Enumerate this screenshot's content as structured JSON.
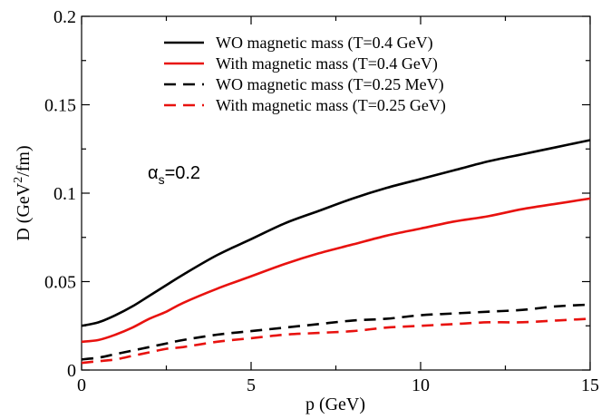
{
  "chart_data": {
    "type": "line",
    "xlabel": "p (GeV)",
    "ylabel": {
      "pre": "D (GeV",
      "sup": "2",
      "post": "/fm)"
    },
    "xlim": [
      0,
      15
    ],
    "ylim": [
      0,
      0.2
    ],
    "xticks": [
      "0",
      "5",
      "10",
      "15"
    ],
    "xtick_values": [
      0,
      5,
      10,
      15
    ],
    "yticks": [
      "0",
      "0.05",
      "0.1",
      "0.15",
      "0.2"
    ],
    "ytick_values": [
      0,
      0.05,
      0.1,
      0.15,
      0.2
    ],
    "annotation": {
      "greek": "α",
      "sub": "s",
      "rest": "=0.2"
    },
    "grid": false,
    "legend_position": "top-center",
    "x": [
      0,
      0.5,
      1,
      1.5,
      2,
      2.5,
      3,
      4,
      5,
      6,
      7,
      8,
      9,
      10,
      11,
      12,
      13,
      14,
      15
    ],
    "series": [
      {
        "name": "WO magnetic mass (T=0.4 GeV)",
        "color": "#000000",
        "dash": "solid",
        "values": [
          0.025,
          0.027,
          0.031,
          0.036,
          0.042,
          0.048,
          0.054,
          0.065,
          0.074,
          0.083,
          0.09,
          0.097,
          0.103,
          0.108,
          0.113,
          0.118,
          0.122,
          0.126,
          0.13
        ]
      },
      {
        "name": "With magnetic mass (T=0.4 GeV)",
        "color": "#e8120f",
        "dash": "solid",
        "values": [
          0.016,
          0.017,
          0.02,
          0.024,
          0.029,
          0.033,
          0.038,
          0.046,
          0.053,
          0.06,
          0.066,
          0.071,
          0.076,
          0.08,
          0.084,
          0.087,
          0.091,
          0.094,
          0.097
        ]
      },
      {
        "name": "WO magnetic mass (T=0.25 MeV)",
        "color": "#000000",
        "dash": "dashed",
        "values": [
          0.006,
          0.007,
          0.009,
          0.011,
          0.013,
          0.015,
          0.017,
          0.02,
          0.022,
          0.024,
          0.026,
          0.028,
          0.029,
          0.031,
          0.032,
          0.033,
          0.034,
          0.036,
          0.037
        ]
      },
      {
        "name": "With magnetic mass (T=0.25 GeV)",
        "color": "#e8120f",
        "dash": "dashed",
        "values": [
          0.004,
          0.005,
          0.006,
          0.008,
          0.01,
          0.012,
          0.013,
          0.016,
          0.018,
          0.02,
          0.021,
          0.022,
          0.024,
          0.025,
          0.026,
          0.027,
          0.027,
          0.028,
          0.029
        ]
      }
    ]
  }
}
